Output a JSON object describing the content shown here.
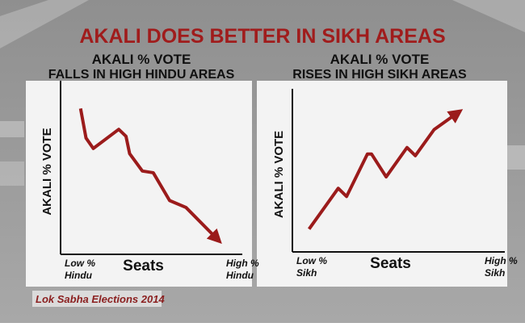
{
  "title": "AKALI DOES BETTER IN SIKH AREAS",
  "source": "Lok Sabha Elections 2014",
  "chart_data": [
    {
      "type": "line",
      "title": "AKALI % VOTE",
      "subtitle": "FALLS IN HIGH HINDU AREAS",
      "y_label": "AKALI % VOTE",
      "x_label": "Seats",
      "x_low_label": [
        "Low %",
        "Hindu"
      ],
      "x_high_label": [
        "High %",
        "Hindu"
      ],
      "xlim": [
        0,
        100
      ],
      "ylim": [
        0,
        100
      ],
      "x": [
        11,
        14,
        18,
        32,
        36,
        38,
        45,
        51,
        60,
        69,
        86
      ],
      "series": [
        {
          "color": "#9b1b1b",
          "values": [
            84,
            67,
            61,
            72,
            68,
            58,
            48,
            47,
            31,
            27,
            9
          ]
        }
      ]
    },
    {
      "type": "line",
      "title": "AKALI % VOTE",
      "subtitle": "RISES IN HIGH SIKH AREAS",
      "y_label": "AKALI % VOTE",
      "x_label": "Seats",
      "x_low_label": [
        "Low %",
        "Sikh"
      ],
      "x_high_label": [
        "High %",
        "Sikh"
      ],
      "xlim": [
        0,
        100
      ],
      "ylim": [
        0,
        100
      ],
      "x": [
        8,
        22,
        26,
        36,
        38,
        45,
        55,
        59,
        68,
        79
      ],
      "series": [
        {
          "color": "#9b1b1b",
          "values": [
            14,
            39,
            34,
            60,
            60,
            46,
            64,
            59,
            75,
            85
          ]
        }
      ]
    }
  ]
}
